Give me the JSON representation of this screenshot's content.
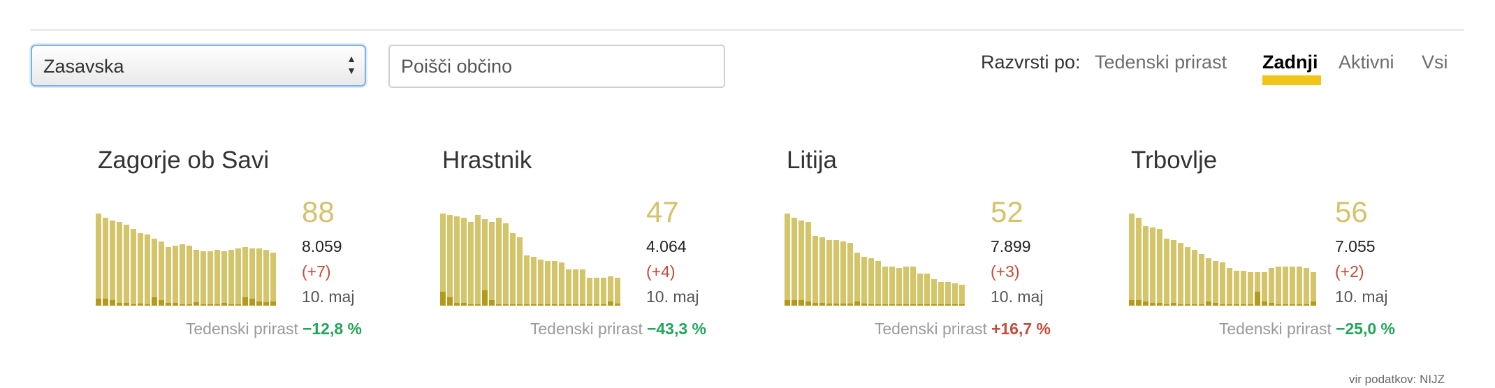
{
  "region_select": {
    "value": "Zasavska",
    "arrows": "▲▼"
  },
  "search": {
    "placeholder": "Poišči občino"
  },
  "sort": {
    "label": "Razvrsti po:",
    "options": [
      "Tedenski prirast",
      "Zadnji",
      "Aktivni",
      "Vsi"
    ],
    "active": "Zadnji"
  },
  "colors": {
    "bar": "#d5c56a",
    "bar_dark": "#b49a1c",
    "positive": "#22a559",
    "negative": "#c44a3a",
    "accent_underline": "#f3c518"
  },
  "cards": [
    {
      "name": "Zagorje ob Savi",
      "active": "88",
      "total": "8.059",
      "delta": "(+7)",
      "date": "10. maj",
      "trend_label": "Tedenski prirast",
      "trend_value": "−12,8 %",
      "trend_direction": "down",
      "bars": [
        132,
        126,
        122,
        120,
        116,
        110,
        104,
        102,
        96,
        92,
        84,
        86,
        88,
        86,
        80,
        78,
        78,
        80,
        78,
        80,
        82,
        84,
        82,
        82,
        80,
        76
      ],
      "daily": [
        10,
        10,
        8,
        4,
        4,
        2,
        3,
        2,
        12,
        8,
        4,
        4,
        2,
        2,
        5,
        2,
        2,
        2,
        4,
        2,
        2,
        12,
        10,
        6,
        5,
        6
      ]
    },
    {
      "name": "Hrastnik",
      "active": "47",
      "total": "4.064",
      "delta": "(+4)",
      "date": "10. maj",
      "trend_label": "Tedenski prirast",
      "trend_value": "−43,3 %",
      "trend_direction": "down",
      "bars": [
        132,
        130,
        128,
        126,
        120,
        130,
        124,
        120,
        126,
        118,
        104,
        98,
        72,
        70,
        66,
        64,
        64,
        62,
        52,
        52,
        52,
        40,
        40,
        40,
        42,
        40
      ],
      "daily": [
        20,
        12,
        4,
        4,
        2,
        2,
        22,
        8,
        2,
        2,
        2,
        2,
        2,
        2,
        2,
        2,
        2,
        2,
        2,
        2,
        2,
        2,
        2,
        2,
        6,
        3
      ]
    },
    {
      "name": "Litija",
      "active": "52",
      "total": "7.899",
      "delta": "(+3)",
      "date": "10. maj",
      "trend_label": "Tedenski prirast",
      "trend_value": "+16,7 %",
      "trend_direction": "up",
      "bars": [
        132,
        126,
        122,
        120,
        100,
        98,
        94,
        94,
        92,
        90,
        76,
        70,
        68,
        64,
        56,
        56,
        54,
        56,
        56,
        46,
        46,
        38,
        34,
        34,
        32,
        30
      ],
      "daily": [
        8,
        8,
        8,
        6,
        4,
        4,
        3,
        3,
        3,
        3,
        6,
        3,
        2,
        2,
        2,
        2,
        2,
        2,
        2,
        2,
        2,
        2,
        2,
        2,
        2,
        2
      ]
    },
    {
      "name": "Trbovlje",
      "active": "56",
      "total": "7.055",
      "delta": "(+2)",
      "date": "10. maj",
      "trend_label": "Tedenski prirast",
      "trend_value": "−25,0 %",
      "trend_direction": "down",
      "bars": [
        132,
        126,
        114,
        112,
        110,
        96,
        94,
        90,
        84,
        80,
        74,
        68,
        64,
        62,
        54,
        50,
        50,
        48,
        48,
        48,
        54,
        56,
        56,
        56,
        56,
        54,
        48
      ],
      "daily": [
        8,
        8,
        6,
        4,
        4,
        2,
        4,
        2,
        2,
        2,
        2,
        6,
        4,
        2,
        2,
        2,
        2,
        2,
        20,
        6,
        4,
        2,
        2,
        2,
        2,
        2,
        6
      ]
    }
  ],
  "source_text": "vir podatkov: NIJZ"
}
